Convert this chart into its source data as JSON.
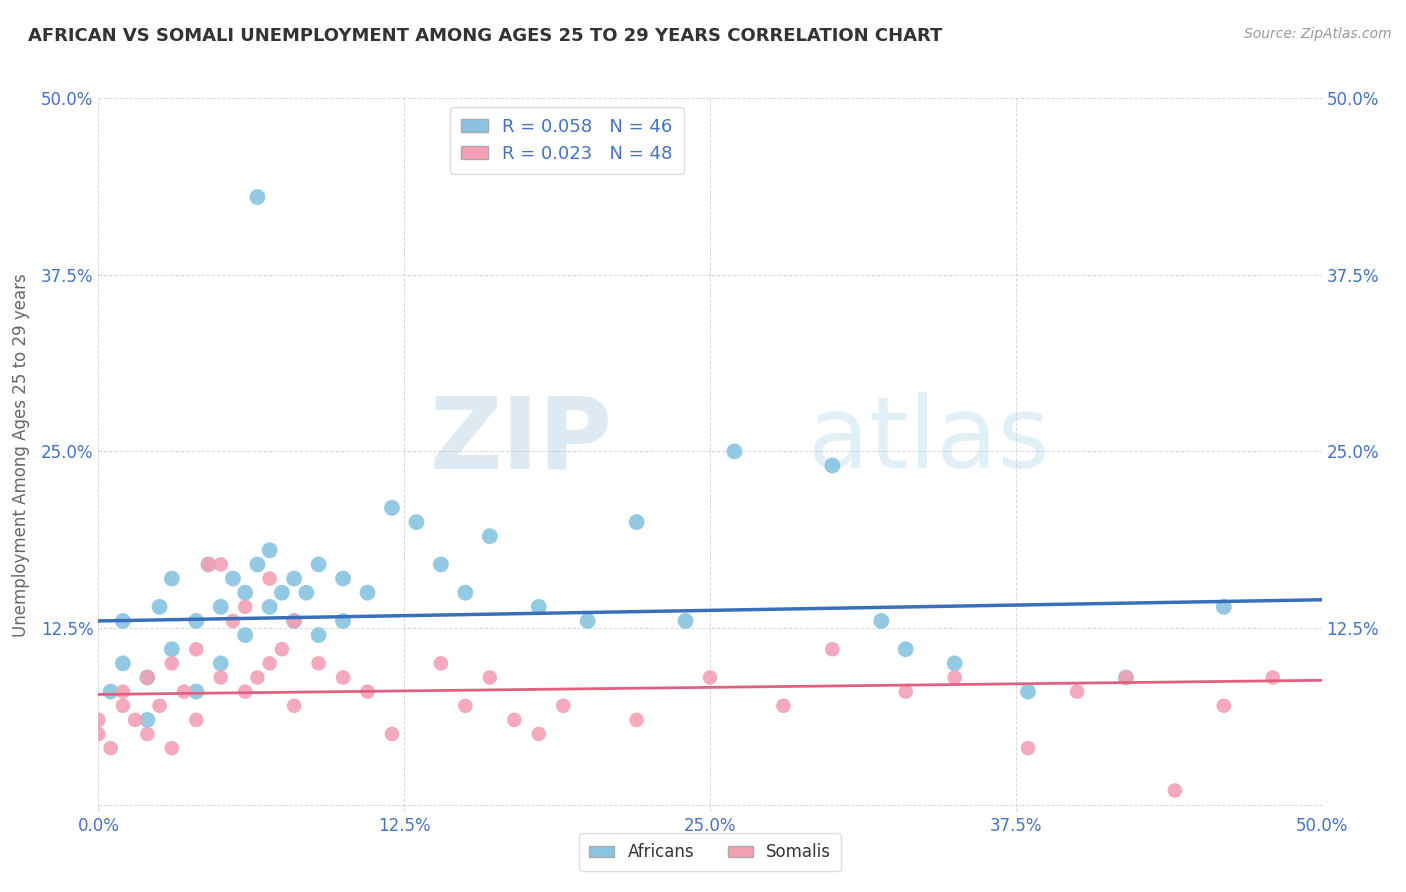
{
  "title": "AFRICAN VS SOMALI UNEMPLOYMENT AMONG AGES 25 TO 29 YEARS CORRELATION CHART",
  "source": "Source: ZipAtlas.com",
  "ylabel": "Unemployment Among Ages 25 to 29 years",
  "xlim": [
    0.0,
    0.5
  ],
  "ylim": [
    -0.005,
    0.5
  ],
  "xticks": [
    0.0,
    0.125,
    0.25,
    0.375,
    0.5
  ],
  "yticks": [
    0.0,
    0.125,
    0.25,
    0.375,
    0.5
  ],
  "xticklabels": [
    "0.0%",
    "12.5%",
    "25.0%",
    "37.5%",
    "50.0%"
  ],
  "yticklabels": [
    "",
    "12.5%",
    "25.0%",
    "37.5%",
    "50.0%"
  ],
  "african_R": 0.058,
  "african_N": 46,
  "somali_R": 0.023,
  "somali_N": 48,
  "african_color": "#89c4e1",
  "somali_color": "#f4a0b5",
  "african_line_color": "#3a6fba",
  "somali_line_color": "#e06080",
  "tick_color": "#4472c4",
  "watermark_zip": "ZIP",
  "watermark_atlas": "atlas",
  "africans_x": [
    0.005,
    0.01,
    0.01,
    0.02,
    0.02,
    0.025,
    0.03,
    0.03,
    0.04,
    0.04,
    0.045,
    0.05,
    0.05,
    0.055,
    0.06,
    0.06,
    0.065,
    0.065,
    0.07,
    0.07,
    0.075,
    0.08,
    0.08,
    0.085,
    0.09,
    0.09,
    0.1,
    0.1,
    0.11,
    0.12,
    0.13,
    0.14,
    0.15,
    0.16,
    0.18,
    0.2,
    0.22,
    0.24,
    0.26,
    0.3,
    0.32,
    0.33,
    0.35,
    0.38,
    0.42,
    0.46
  ],
  "africans_y": [
    0.08,
    0.1,
    0.13,
    0.09,
    0.06,
    0.14,
    0.11,
    0.16,
    0.13,
    0.08,
    0.17,
    0.14,
    0.1,
    0.16,
    0.15,
    0.12,
    0.43,
    0.17,
    0.14,
    0.18,
    0.15,
    0.16,
    0.13,
    0.15,
    0.17,
    0.12,
    0.16,
    0.13,
    0.15,
    0.21,
    0.2,
    0.17,
    0.15,
    0.19,
    0.14,
    0.13,
    0.2,
    0.13,
    0.25,
    0.24,
    0.13,
    0.11,
    0.1,
    0.08,
    0.09,
    0.14
  ],
  "somalis_x": [
    0.0,
    0.0,
    0.005,
    0.01,
    0.01,
    0.015,
    0.02,
    0.02,
    0.025,
    0.03,
    0.03,
    0.035,
    0.04,
    0.04,
    0.045,
    0.05,
    0.05,
    0.055,
    0.06,
    0.06,
    0.065,
    0.07,
    0.07,
    0.075,
    0.08,
    0.08,
    0.09,
    0.1,
    0.11,
    0.12,
    0.14,
    0.15,
    0.16,
    0.17,
    0.18,
    0.19,
    0.22,
    0.25,
    0.28,
    0.3,
    0.33,
    0.35,
    0.38,
    0.4,
    0.42,
    0.44,
    0.46,
    0.48
  ],
  "somalis_y": [
    0.05,
    0.06,
    0.04,
    0.07,
    0.08,
    0.06,
    0.05,
    0.09,
    0.07,
    0.1,
    0.04,
    0.08,
    0.11,
    0.06,
    0.17,
    0.09,
    0.17,
    0.13,
    0.08,
    0.14,
    0.09,
    0.1,
    0.16,
    0.11,
    0.07,
    0.13,
    0.1,
    0.09,
    0.08,
    0.05,
    0.1,
    0.07,
    0.09,
    0.06,
    0.05,
    0.07,
    0.06,
    0.09,
    0.07,
    0.11,
    0.08,
    0.09,
    0.04,
    0.08,
    0.09,
    0.01,
    0.07,
    0.09
  ],
  "african_trend": [
    0.13,
    0.145
  ],
  "somali_trend": [
    0.078,
    0.088
  ],
  "background_color": "#ffffff",
  "grid_color": "#c8c8c8"
}
